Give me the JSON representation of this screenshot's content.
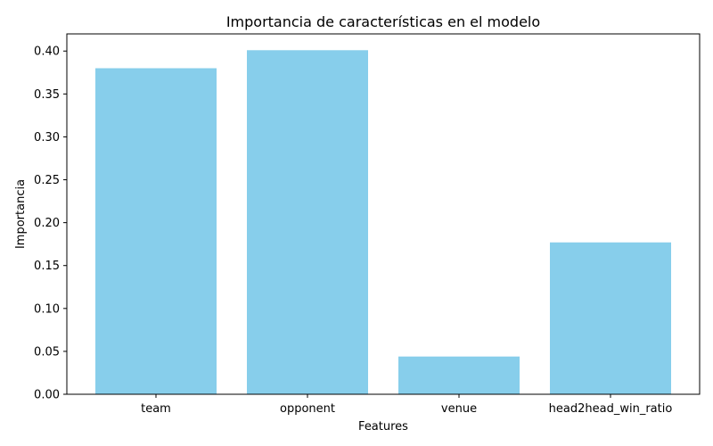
{
  "chart_data": {
    "type": "bar",
    "title": "Importancia de características en el modelo",
    "xlabel": "Features",
    "ylabel": "Importancia",
    "categories": [
      "team",
      "opponent",
      "venue",
      "head2head_win_ratio"
    ],
    "values": [
      0.38,
      0.401,
      0.044,
      0.177
    ],
    "ylim": [
      0,
      0.42
    ],
    "yticks": [
      "0.00",
      "0.05",
      "0.10",
      "0.15",
      "0.20",
      "0.25",
      "0.30",
      "0.35",
      "0.40"
    ],
    "bar_color": "#87CEEB",
    "grid": false,
    "legend": "none"
  }
}
